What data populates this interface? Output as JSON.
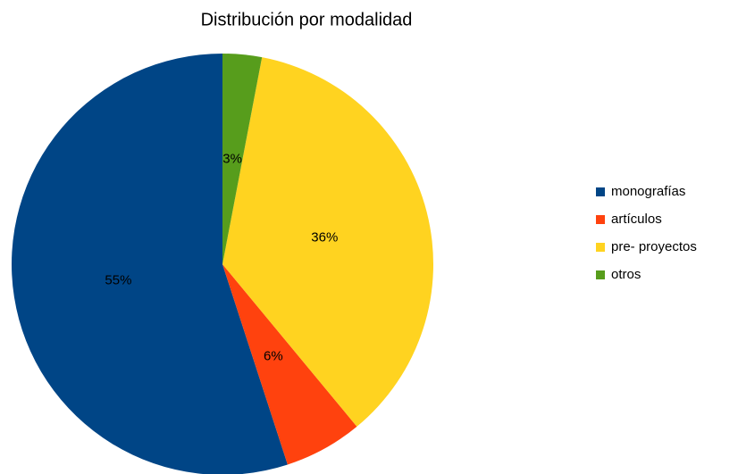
{
  "chart_data": {
    "type": "pie",
    "title": "Distribución por modalidad",
    "categories": [
      "monografías",
      "artículos",
      "pre- proyectos",
      "otros"
    ],
    "values": [
      55,
      6,
      36,
      3
    ],
    "value_labels": [
      "55%",
      "6%",
      "36%",
      "3%"
    ],
    "colors": [
      "#004586",
      "#ff420e",
      "#ffd320",
      "#579d1c"
    ],
    "legend": "right"
  }
}
